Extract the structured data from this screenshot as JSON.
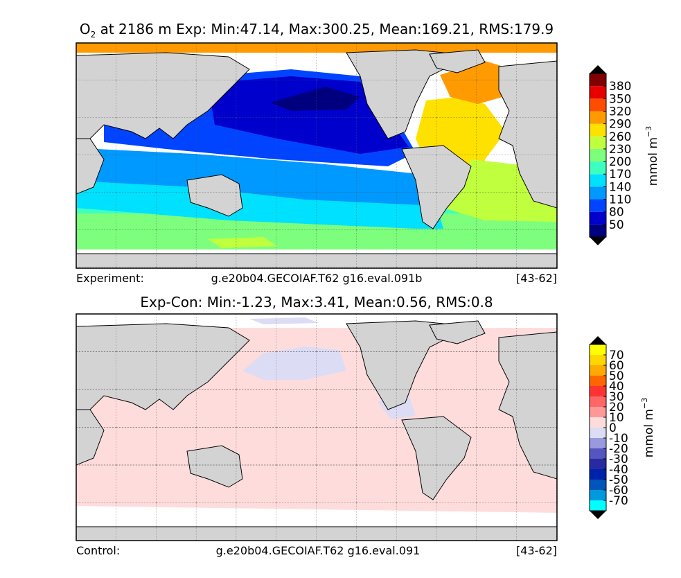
{
  "chart_data": [
    {
      "type": "heatmap",
      "title_species": "O",
      "title_subscript": "2",
      "title_rest": " at 2186 m Exp: Min:47.14, Max:300.25, Mean:169.21, RMS:179.9",
      "footer_left": "Experiment:",
      "footer_mid": "g.e20b04.GECOIAF.T62 g16.eval.091b",
      "footer_right": "[43-62]",
      "colorbar_label": "mmol m",
      "colorbar_exponent": "−3",
      "colorbar_levels": [
        "50",
        "80",
        "110",
        "140",
        "170",
        "200",
        "230",
        "260",
        "290",
        "320",
        "350",
        "380"
      ],
      "colorbar_colors": [
        "#00007f",
        "#0000cd",
        "#0044ff",
        "#0099ff",
        "#00e1ff",
        "#3dffc0",
        "#7dff7d",
        "#c0ff3d",
        "#ffe100",
        "#ff9a00",
        "#ff4d00",
        "#e60000",
        "#7f0000"
      ],
      "color_over": "#000000",
      "color_under": "#000000",
      "land_color": "#d3d3d3",
      "stats": {
        "min": 47.14,
        "max": 300.25,
        "mean": 169.21,
        "rms": 179.9
      }
    },
    {
      "type": "heatmap",
      "title": "Exp-Con: Min:-1.23, Max:3.41, Mean:0.56, RMS:0.8",
      "footer_left": "Control:",
      "footer_mid": "g.e20b04.GECOIAF.T62 g16.eval.091",
      "footer_right": "[43-62]",
      "colorbar_label": "mmol m",
      "colorbar_exponent": "−3",
      "colorbar_levels": [
        "-70",
        "-60",
        "-50",
        "-40",
        "-30",
        "-20",
        "-10",
        "0",
        "10",
        "20",
        "30",
        "40",
        "50",
        "60",
        "70"
      ],
      "colorbar_colors": [
        "#00ffff",
        "#0099dd",
        "#0055bb",
        "#0022aa",
        "#2a2aa0",
        "#5555c0",
        "#9999dd",
        "#dcdcf5",
        "#ffdcdc",
        "#ff9999",
        "#ff6666",
        "#ff3333",
        "#ff6600",
        "#ffaa00",
        "#ffd700",
        "#ffff00"
      ],
      "color_over": "#000000",
      "color_under": "#000000",
      "land_color": "#d3d3d3",
      "stats": {
        "min": -1.23,
        "max": 3.41,
        "mean": 0.56,
        "rms": 0.8
      }
    }
  ]
}
